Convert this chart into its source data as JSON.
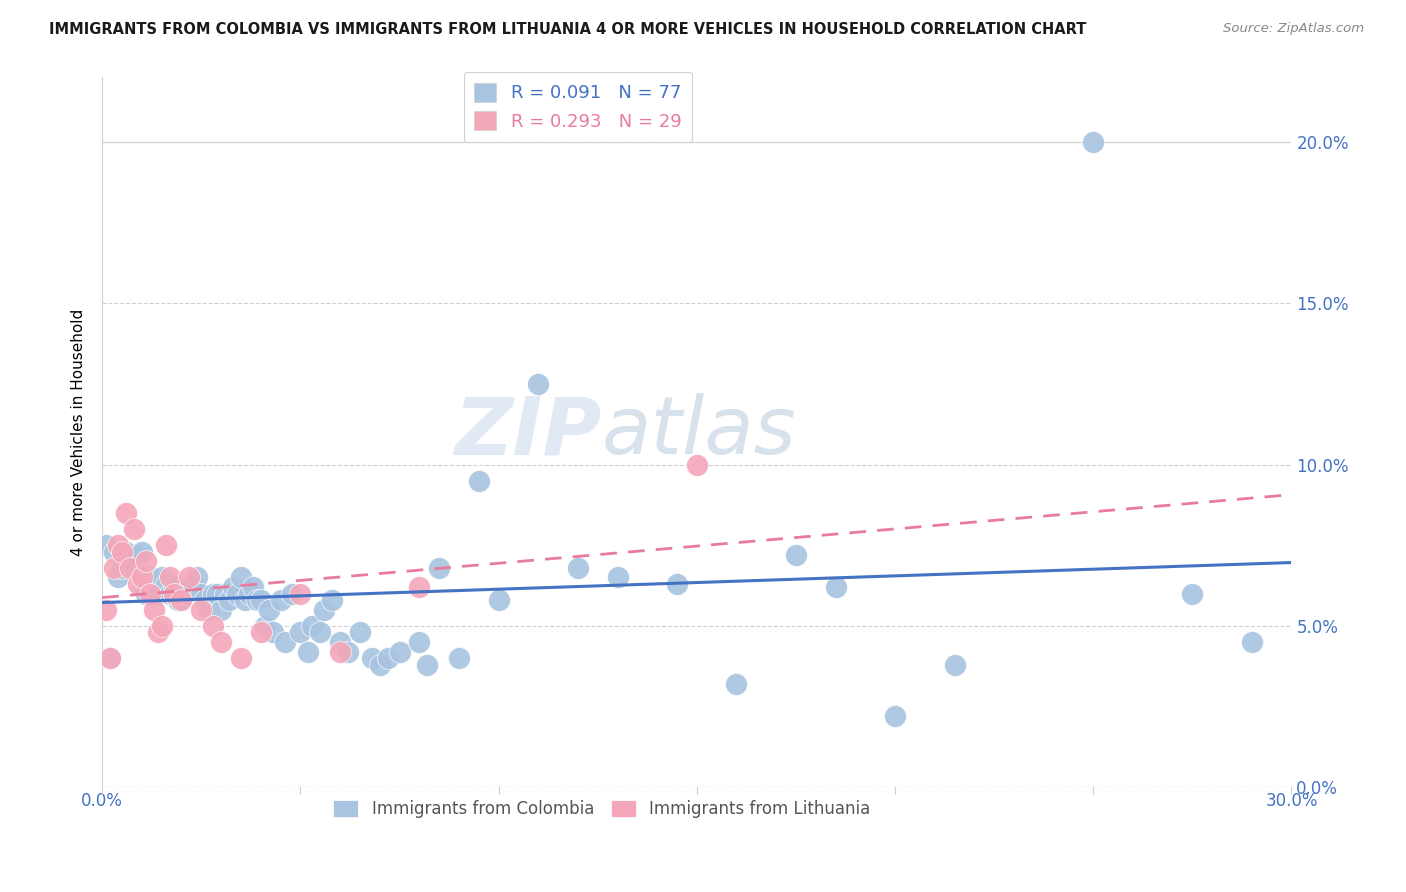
{
  "title": "IMMIGRANTS FROM COLOMBIA VS IMMIGRANTS FROM LITHUANIA 4 OR MORE VEHICLES IN HOUSEHOLD CORRELATION CHART",
  "source": "Source: ZipAtlas.com",
  "ylabel": "4 or more Vehicles in Household",
  "xlim": [
    0.0,
    0.3
  ],
  "ylim": [
    0.0,
    0.22
  ],
  "xticks": [
    0.0,
    0.05,
    0.1,
    0.15,
    0.2,
    0.25,
    0.3
  ],
  "xtick_labels_show": [
    "0.0%",
    "",
    "",
    "",
    "",
    "",
    "30.0%"
  ],
  "yticks": [
    0.0,
    0.05,
    0.1,
    0.15,
    0.2
  ],
  "ytick_labels": [
    "0.0%",
    "5.0%",
    "10.0%",
    "15.0%",
    "20.0%"
  ],
  "colombia_R": 0.091,
  "colombia_N": 77,
  "lithuania_R": 0.293,
  "lithuania_N": 29,
  "colombia_color": "#a8c4e0",
  "lithuania_color": "#f4a7b9",
  "colombia_line_color": "#4472c4",
  "lithuania_line_color": "#e87b9e",
  "watermark_zip": "ZIP",
  "watermark_atlas": "atlas",
  "colombia_x": [
    0.001,
    0.002,
    0.003,
    0.004,
    0.005,
    0.006,
    0.007,
    0.008,
    0.009,
    0.01,
    0.011,
    0.012,
    0.013,
    0.014,
    0.015,
    0.016,
    0.017,
    0.018,
    0.019,
    0.02,
    0.021,
    0.022,
    0.023,
    0.024,
    0.025,
    0.026,
    0.027,
    0.028,
    0.029,
    0.03,
    0.031,
    0.032,
    0.033,
    0.034,
    0.035,
    0.036,
    0.037,
    0.038,
    0.039,
    0.04,
    0.041,
    0.042,
    0.043,
    0.045,
    0.046,
    0.048,
    0.05,
    0.052,
    0.053,
    0.055,
    0.056,
    0.058,
    0.06,
    0.062,
    0.065,
    0.068,
    0.07,
    0.072,
    0.075,
    0.08,
    0.082,
    0.085,
    0.09,
    0.095,
    0.1,
    0.11,
    0.12,
    0.13,
    0.145,
    0.16,
    0.175,
    0.185,
    0.2,
    0.215,
    0.25,
    0.275,
    0.29
  ],
  "colombia_y": [
    0.075,
    0.04,
    0.073,
    0.065,
    0.068,
    0.073,
    0.07,
    0.068,
    0.072,
    0.073,
    0.06,
    0.065,
    0.063,
    0.06,
    0.065,
    0.063,
    0.06,
    0.062,
    0.058,
    0.06,
    0.06,
    0.062,
    0.063,
    0.065,
    0.06,
    0.058,
    0.055,
    0.06,
    0.06,
    0.055,
    0.06,
    0.058,
    0.062,
    0.06,
    0.065,
    0.058,
    0.06,
    0.062,
    0.058,
    0.058,
    0.05,
    0.055,
    0.048,
    0.058,
    0.045,
    0.06,
    0.048,
    0.042,
    0.05,
    0.048,
    0.055,
    0.058,
    0.045,
    0.042,
    0.048,
    0.04,
    0.038,
    0.04,
    0.042,
    0.045,
    0.038,
    0.068,
    0.04,
    0.095,
    0.058,
    0.125,
    0.068,
    0.065,
    0.063,
    0.032,
    0.072,
    0.062,
    0.022,
    0.038,
    0.2,
    0.06,
    0.045
  ],
  "lithuania_x": [
    0.001,
    0.002,
    0.003,
    0.004,
    0.005,
    0.006,
    0.007,
    0.008,
    0.009,
    0.01,
    0.011,
    0.012,
    0.013,
    0.014,
    0.015,
    0.016,
    0.017,
    0.018,
    0.02,
    0.022,
    0.025,
    0.028,
    0.03,
    0.035,
    0.04,
    0.05,
    0.06,
    0.08,
    0.15
  ],
  "lithuania_y": [
    0.055,
    0.04,
    0.068,
    0.075,
    0.073,
    0.085,
    0.068,
    0.08,
    0.063,
    0.065,
    0.07,
    0.06,
    0.055,
    0.048,
    0.05,
    0.075,
    0.065,
    0.06,
    0.058,
    0.065,
    0.055,
    0.05,
    0.045,
    0.04,
    0.048,
    0.06,
    0.042,
    0.062,
    0.1
  ]
}
